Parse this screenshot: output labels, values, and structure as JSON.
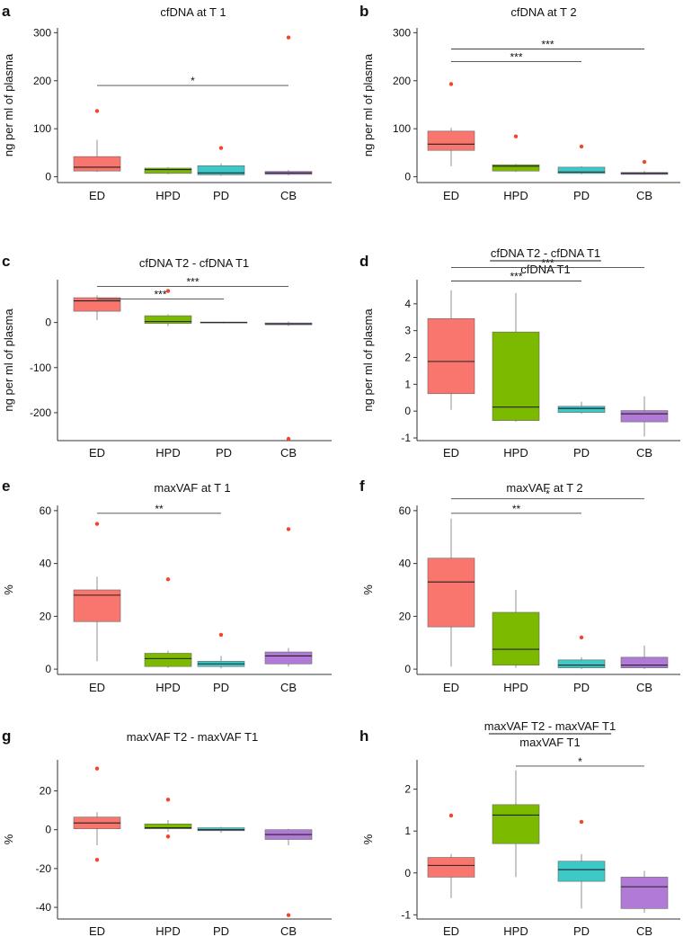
{
  "colors": {
    "ED": "#f8766d",
    "HPD": "#7cba00",
    "PD": "#3ec9c9",
    "CB": "#b27ad7",
    "outlier": "#f2452a"
  },
  "chart_data": [
    {
      "panel": "a",
      "type": "box",
      "title": "cfDNA at T 1",
      "ylabel": "ng per ml of plasma",
      "ylim": [
        -12,
        310
      ],
      "yticks": [
        0,
        100,
        200,
        300
      ],
      "ytick_labels": [
        "0",
        "100",
        "200",
        "300"
      ],
      "categories": [
        "ED",
        "HPD",
        "PD",
        "CB"
      ],
      "boxes": [
        {
          "whisker_low": 10,
          "q1": 12,
          "median": 20,
          "q3": 42,
          "whisker_high": 77,
          "outliers": [
            137
          ]
        },
        {
          "whisker_low": 5,
          "q1": 7,
          "median": 15,
          "q3": 18,
          "whisker_high": 20,
          "outliers": []
        },
        {
          "whisker_low": 2,
          "q1": 4,
          "median": 8,
          "q3": 23,
          "whisker_high": 28,
          "outliers": [
            60
          ]
        },
        {
          "whisker_low": 3,
          "q1": 5,
          "median": 8,
          "q3": 11,
          "whisker_high": 14,
          "outliers": [
            290
          ]
        }
      ],
      "comparisons": [
        {
          "from": "ED",
          "to": "CB",
          "y": 190,
          "label": "*"
        }
      ]
    },
    {
      "panel": "b",
      "type": "box",
      "title": "cfDNA at T 2",
      "ylabel": "ng per ml of plasma",
      "ylim": [
        -12,
        310
      ],
      "yticks": [
        0,
        100,
        200,
        300
      ],
      "ytick_labels": [
        "0",
        "100",
        "200",
        "300"
      ],
      "categories": [
        "ED",
        "HPD",
        "PD",
        "CB"
      ],
      "boxes": [
        {
          "whisker_low": 22,
          "q1": 55,
          "median": 68,
          "q3": 95,
          "whisker_high": 102,
          "outliers": [
            193
          ]
        },
        {
          "whisker_low": 10,
          "q1": 12,
          "median": 22,
          "q3": 25,
          "whisker_high": 27,
          "outliers": [
            84
          ]
        },
        {
          "whisker_low": 5,
          "q1": 7,
          "median": 10,
          "q3": 20,
          "whisker_high": 22,
          "outliers": [
            63
          ]
        },
        {
          "whisker_low": 4,
          "q1": 5,
          "median": 7,
          "q3": 9,
          "whisker_high": 12,
          "outliers": [
            31
          ]
        }
      ],
      "comparisons": [
        {
          "from": "ED",
          "to": "PD",
          "y": 240,
          "label": "***"
        },
        {
          "from": "ED",
          "to": "CB",
          "y": 266,
          "label": "***"
        }
      ]
    },
    {
      "panel": "c",
      "type": "box",
      "title": "cfDNA T2 - cfDNA T1",
      "ylabel": "ng per ml of plasma",
      "ylim": [
        -262,
        95
      ],
      "yticks": [
        0,
        -100,
        -200
      ],
      "ytick_labels": [
        "0",
        "-100",
        "-200"
      ],
      "categories": [
        "ED",
        "HPD",
        "PD",
        "CB"
      ],
      "boxes": [
        {
          "whisker_low": 5,
          "q1": 25,
          "median": 48,
          "q3": 55,
          "whisker_high": 60,
          "outliers": []
        },
        {
          "whisker_low": -8,
          "q1": -2,
          "median": 2,
          "q3": 15,
          "whisker_high": 18,
          "outliers": [
            70
          ]
        },
        {
          "whisker_low": -2,
          "q1": -1,
          "median": 0,
          "q3": 1,
          "whisker_high": 2,
          "outliers": []
        },
        {
          "whisker_low": -8,
          "q1": -5,
          "median": -3,
          "q3": -1,
          "whisker_high": 2,
          "outliers": [
            -258
          ]
        }
      ],
      "comparisons": [
        {
          "from": "ED",
          "to": "PD",
          "y": 52,
          "label": "***"
        },
        {
          "from": "ED",
          "to": "CB",
          "y": 80,
          "label": "***"
        }
      ]
    },
    {
      "panel": "d",
      "type": "box",
      "title_numerator": "cfDNA T2 - cfDNA T1",
      "title_denominator": "cfDNA T1",
      "ylabel": "ng per ml of plasma",
      "ylim": [
        -1.1,
        4.9
      ],
      "yticks": [
        -1,
        0,
        1,
        2,
        3,
        4
      ],
      "ytick_labels": [
        "-1",
        "0",
        "1",
        "2",
        "3",
        "4"
      ],
      "categories": [
        "ED",
        "HPD",
        "PD",
        "CB"
      ],
      "boxes": [
        {
          "whisker_low": 0.05,
          "q1": 0.65,
          "median": 1.85,
          "q3": 3.45,
          "whisker_high": 4.5,
          "outliers": []
        },
        {
          "whisker_low": -0.4,
          "q1": -0.35,
          "median": 0.15,
          "q3": 2.95,
          "whisker_high": 4.4,
          "outliers": []
        },
        {
          "whisker_low": -0.1,
          "q1": -0.05,
          "median": 0.1,
          "q3": 0.18,
          "whisker_high": 0.35,
          "outliers": []
        },
        {
          "whisker_low": -0.95,
          "q1": -0.4,
          "median": -0.1,
          "q3": 0.02,
          "whisker_high": 0.55,
          "outliers": []
        }
      ],
      "comparisons": [
        {
          "from": "ED",
          "to": "PD",
          "y": 4.85,
          "label": "***"
        },
        {
          "from": "ED",
          "to": "CB",
          "y": 5.35,
          "label": "***"
        }
      ]
    },
    {
      "panel": "e",
      "type": "box",
      "title": "maxVAF at T 1",
      "ylabel": "%",
      "ylim": [
        -2,
        62
      ],
      "yticks": [
        0,
        20,
        40,
        60
      ],
      "ytick_labels": [
        "0",
        "20",
        "40",
        "60"
      ],
      "categories": [
        "ED",
        "HPD",
        "PD",
        "CB"
      ],
      "boxes": [
        {
          "whisker_low": 3,
          "q1": 18,
          "median": 28,
          "q3": 30,
          "whisker_high": 35,
          "outliers": [
            55
          ]
        },
        {
          "whisker_low": 0.5,
          "q1": 1,
          "median": 4,
          "q3": 6,
          "whisker_high": 7,
          "outliers": [
            34
          ]
        },
        {
          "whisker_low": 0.3,
          "q1": 1,
          "median": 2,
          "q3": 3,
          "whisker_high": 5,
          "outliers": [
            13
          ]
        },
        {
          "whisker_low": 1,
          "q1": 2,
          "median": 5,
          "q3": 6.5,
          "whisker_high": 8,
          "outliers": [
            53
          ]
        }
      ],
      "comparisons": [
        {
          "from": "ED",
          "to": "PD",
          "y": 59,
          "label": "**"
        }
      ]
    },
    {
      "panel": "f",
      "type": "box",
      "title": "maxVAF at T 2",
      "ylabel": "%",
      "ylim": [
        -2,
        62
      ],
      "yticks": [
        0,
        20,
        40,
        60
      ],
      "ytick_labels": [
        "0",
        "20",
        "40",
        "60"
      ],
      "categories": [
        "ED",
        "HPD",
        "PD",
        "CB"
      ],
      "boxes": [
        {
          "whisker_low": 1,
          "q1": 16,
          "median": 33,
          "q3": 42,
          "whisker_high": 57,
          "outliers": []
        },
        {
          "whisker_low": 0.5,
          "q1": 1.5,
          "median": 7.5,
          "q3": 21.5,
          "whisker_high": 30,
          "outliers": []
        },
        {
          "whisker_low": 0,
          "q1": 0.5,
          "median": 1.5,
          "q3": 3.5,
          "whisker_high": 4.5,
          "outliers": [
            12
          ]
        },
        {
          "whisker_low": 0,
          "q1": 0.5,
          "median": 1.5,
          "q3": 4.5,
          "whisker_high": 9,
          "outliers": []
        }
      ],
      "comparisons": [
        {
          "from": "ED",
          "to": "PD",
          "y": 59,
          "label": "**"
        },
        {
          "from": "ED",
          "to": "CB",
          "y": 64.5,
          "label": "*"
        }
      ]
    },
    {
      "panel": "g",
      "type": "box",
      "title": "maxVAF T2 - maxVAF T1",
      "ylabel": "%",
      "ylim": [
        -46,
        36
      ],
      "yticks": [
        20,
        0,
        -20,
        -40
      ],
      "ytick_labels": [
        "20",
        "0",
        "-20",
        "-40"
      ],
      "categories": [
        "ED",
        "HPD",
        "PD",
        "CB"
      ],
      "boxes": [
        {
          "whisker_low": -8,
          "q1": 0.5,
          "median": 3.5,
          "q3": 6.5,
          "whisker_high": 9,
          "outliers": [
            31.5,
            -15.5
          ]
        },
        {
          "whisker_low": -1,
          "q1": 0.5,
          "median": 1,
          "q3": 3,
          "whisker_high": 5,
          "outliers": [
            15.5,
            -3.5
          ]
        },
        {
          "whisker_low": -1.5,
          "q1": -0.5,
          "median": 0,
          "q3": 1,
          "whisker_high": 1.5,
          "outliers": []
        },
        {
          "whisker_low": -8,
          "q1": -5,
          "median": -2.5,
          "q3": 0,
          "whisker_high": 0.5,
          "outliers": [
            -44
          ]
        }
      ],
      "comparisons": []
    },
    {
      "panel": "h",
      "type": "box",
      "title_numerator": "maxVAF T2 - maxVAF T1",
      "title_denominator": "maxVAF T1",
      "ylabel": "%",
      "ylim": [
        -1.1,
        2.7
      ],
      "yticks": [
        -1,
        0,
        1,
        2
      ],
      "ytick_labels": [
        "-1",
        "0",
        "1",
        "2"
      ],
      "categories": [
        "ED",
        "HPD",
        "PD",
        "CB"
      ],
      "boxes": [
        {
          "whisker_low": -0.6,
          "q1": -0.1,
          "median": 0.18,
          "q3": 0.37,
          "whisker_high": 0.45,
          "outliers": [
            1.37
          ]
        },
        {
          "whisker_low": -0.1,
          "q1": 0.7,
          "median": 1.38,
          "q3": 1.63,
          "whisker_high": 2.45,
          "outliers": []
        },
        {
          "whisker_low": -0.85,
          "q1": -0.2,
          "median": 0.08,
          "q3": 0.28,
          "whisker_high": 0.45,
          "outliers": [
            1.22
          ]
        },
        {
          "whisker_low": -0.95,
          "q1": -0.85,
          "median": -0.33,
          "q3": -0.1,
          "whisker_high": 0.05,
          "outliers": []
        }
      ],
      "comparisons": [
        {
          "from": "HPD",
          "to": "CB",
          "y": 2.55,
          "label": "*"
        }
      ]
    }
  ]
}
